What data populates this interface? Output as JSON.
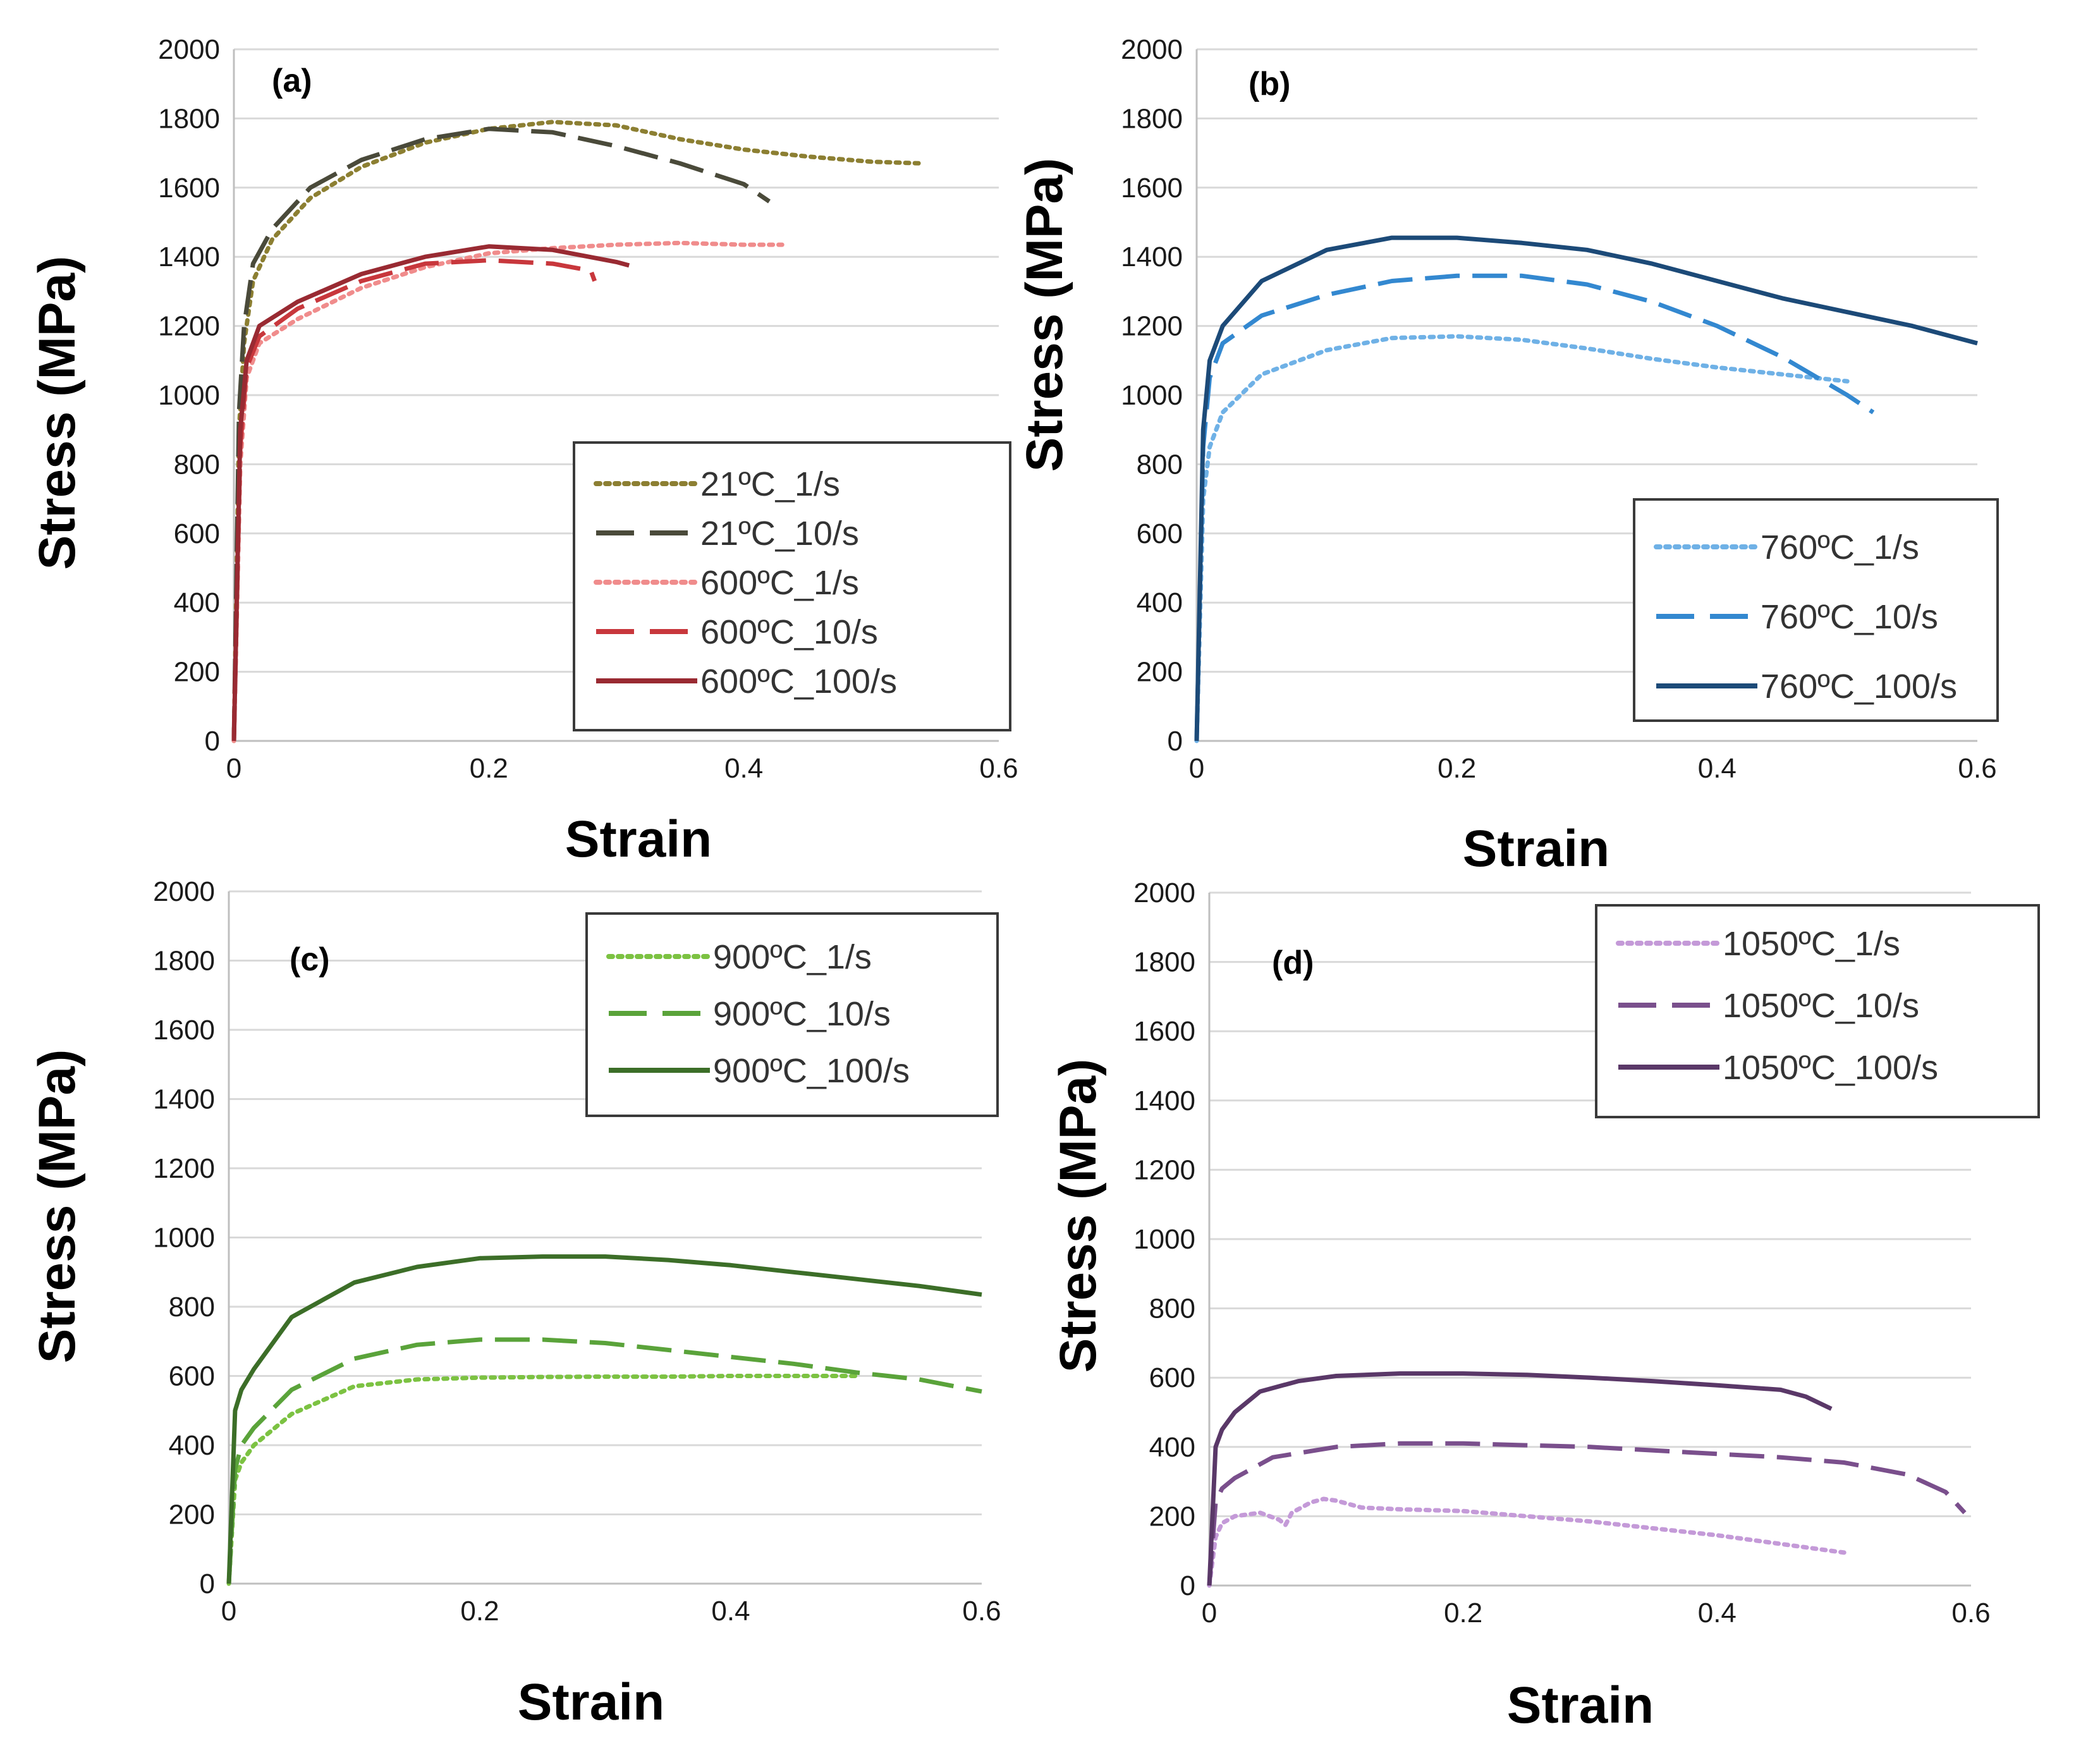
{
  "chart_data": [
    {
      "panel": "(a)",
      "type": "line",
      "xlabel": "Strain",
      "ylabel": "Stress (MPa)",
      "xlim": [
        0,
        0.6
      ],
      "ylim": [
        0,
        2000
      ],
      "xticks": [
        "0",
        "0.2",
        "0.4",
        "0.6"
      ],
      "yticks": [
        "0",
        "200",
        "400",
        "600",
        "800",
        "1000",
        "1200",
        "1400",
        "1600",
        "1800",
        "2000"
      ],
      "grid": "horizontal",
      "legend_position": "bottom-right",
      "series": [
        {
          "name": "21ºC_1/s",
          "color": "#8c7f32",
          "style": "dotted",
          "x": [
            0,
            0.004,
            0.008,
            0.015,
            0.03,
            0.06,
            0.1,
            0.15,
            0.2,
            0.25,
            0.3,
            0.35,
            0.4,
            0.45,
            0.5,
            0.54
          ],
          "y": [
            0,
            900,
            1150,
            1330,
            1450,
            1570,
            1660,
            1730,
            1770,
            1790,
            1780,
            1740,
            1710,
            1690,
            1675,
            1670
          ]
        },
        {
          "name": "21ºC_10/s",
          "color": "#4a4a3a",
          "style": "dashed",
          "x": [
            0,
            0.004,
            0.008,
            0.015,
            0.03,
            0.06,
            0.1,
            0.15,
            0.2,
            0.25,
            0.3,
            0.35,
            0.4,
            0.42
          ],
          "y": [
            0,
            950,
            1200,
            1380,
            1480,
            1600,
            1680,
            1740,
            1770,
            1760,
            1720,
            1670,
            1610,
            1560
          ]
        },
        {
          "name": "600ºC_1/s",
          "color": "#f08c8c",
          "style": "dotted",
          "x": [
            0,
            0.005,
            0.01,
            0.02,
            0.05,
            0.1,
            0.15,
            0.2,
            0.25,
            0.3,
            0.35,
            0.4,
            0.43
          ],
          "y": [
            0,
            800,
            1050,
            1150,
            1220,
            1310,
            1370,
            1410,
            1425,
            1435,
            1440,
            1435,
            1435
          ]
        },
        {
          "name": "600ºC_10/s",
          "color": "#c8373c",
          "style": "dashed",
          "x": [
            0,
            0.005,
            0.01,
            0.02,
            0.05,
            0.1,
            0.15,
            0.2,
            0.25,
            0.28,
            0.283
          ],
          "y": [
            0,
            850,
            1080,
            1170,
            1250,
            1330,
            1380,
            1390,
            1380,
            1360,
            1330
          ]
        },
        {
          "name": "600ºC_100/s",
          "color": "#992a32",
          "style": "solid",
          "x": [
            0,
            0.005,
            0.01,
            0.02,
            0.05,
            0.1,
            0.15,
            0.2,
            0.25,
            0.3,
            0.31
          ],
          "y": [
            0,
            900,
            1100,
            1200,
            1270,
            1350,
            1400,
            1430,
            1420,
            1385,
            1375
          ]
        }
      ]
    },
    {
      "panel": "(b)",
      "type": "line",
      "xlabel": "Strain",
      "ylabel": "Stress (MPa)",
      "xlim": [
        0,
        0.6
      ],
      "ylim": [
        0,
        2000
      ],
      "xticks": [
        "0",
        "0.2",
        "0.4",
        "0.6"
      ],
      "yticks": [
        "0",
        "200",
        "400",
        "600",
        "800",
        "1000",
        "1200",
        "1400",
        "1600",
        "1800",
        "2000"
      ],
      "grid": "horizontal",
      "legend_position": "bottom-right",
      "series": [
        {
          "name": "760ºC_1/s",
          "color": "#6fb1e6",
          "style": "dotted",
          "x": [
            0,
            0.005,
            0.01,
            0.02,
            0.05,
            0.1,
            0.15,
            0.2,
            0.25,
            0.3,
            0.35,
            0.4,
            0.45,
            0.5
          ],
          "y": [
            0,
            700,
            850,
            950,
            1060,
            1130,
            1165,
            1170,
            1160,
            1135,
            1105,
            1080,
            1060,
            1040
          ]
        },
        {
          "name": "760ºC_10/s",
          "color": "#3388d0",
          "style": "dashed",
          "x": [
            0,
            0.005,
            0.01,
            0.02,
            0.05,
            0.1,
            0.15,
            0.2,
            0.25,
            0.3,
            0.35,
            0.4,
            0.45,
            0.5,
            0.52
          ],
          "y": [
            0,
            850,
            1050,
            1150,
            1230,
            1290,
            1330,
            1345,
            1345,
            1320,
            1270,
            1200,
            1110,
            1000,
            950
          ]
        },
        {
          "name": "760ºC_100/s",
          "color": "#1c4a78",
          "style": "solid",
          "x": [
            0,
            0.005,
            0.01,
            0.02,
            0.05,
            0.1,
            0.15,
            0.2,
            0.25,
            0.3,
            0.35,
            0.4,
            0.45,
            0.5,
            0.55,
            0.6
          ],
          "y": [
            0,
            900,
            1100,
            1200,
            1330,
            1420,
            1455,
            1455,
            1440,
            1420,
            1380,
            1330,
            1280,
            1240,
            1200,
            1150
          ]
        }
      ]
    },
    {
      "panel": "(c)",
      "type": "line",
      "xlabel": "Strain",
      "ylabel": "Stress (MPa)",
      "xlim": [
        0,
        0.6
      ],
      "ylim": [
        0,
        2000
      ],
      "xticks": [
        "0",
        "0.2",
        "0.4",
        "0.6"
      ],
      "yticks": [
        "0",
        "200",
        "400",
        "600",
        "800",
        "1000",
        "1200",
        "1400",
        "1600",
        "1800",
        "2000"
      ],
      "grid": "horizontal",
      "legend_position": "top-right",
      "series": [
        {
          "name": "900ºC_1/s",
          "color": "#7cc242",
          "style": "dotted",
          "x": [
            0,
            0.005,
            0.01,
            0.02,
            0.05,
            0.1,
            0.15,
            0.2,
            0.25,
            0.3,
            0.35,
            0.4,
            0.45,
            0.5
          ],
          "y": [
            0,
            300,
            350,
            400,
            490,
            570,
            590,
            595,
            597,
            598,
            598,
            600,
            600,
            600
          ]
        },
        {
          "name": "900ºC_10/s",
          "color": "#5aa33a",
          "style": "dashed",
          "x": [
            0,
            0.005,
            0.01,
            0.02,
            0.05,
            0.1,
            0.15,
            0.2,
            0.25,
            0.3,
            0.35,
            0.4,
            0.45,
            0.5,
            0.55,
            0.6
          ],
          "y": [
            0,
            330,
            400,
            450,
            560,
            650,
            690,
            705,
            705,
            695,
            675,
            655,
            635,
            610,
            590,
            555
          ]
        },
        {
          "name": "900ºC_100/s",
          "color": "#3c6e28",
          "style": "solid",
          "x": [
            0,
            0.005,
            0.01,
            0.02,
            0.05,
            0.1,
            0.15,
            0.2,
            0.25,
            0.3,
            0.35,
            0.4,
            0.45,
            0.5,
            0.55,
            0.6
          ],
          "y": [
            0,
            500,
            560,
            620,
            770,
            870,
            915,
            940,
            945,
            945,
            935,
            920,
            900,
            880,
            860,
            835
          ]
        }
      ]
    },
    {
      "panel": "(d)",
      "type": "line",
      "xlabel": "Strain",
      "ylabel": "Stress (MPa)",
      "xlim": [
        0,
        0.6
      ],
      "ylim": [
        0,
        2000
      ],
      "xticks": [
        "0",
        "0.2",
        "0.4",
        "0.6"
      ],
      "yticks": [
        "0",
        "200",
        "400",
        "600",
        "800",
        "1000",
        "1200",
        "1400",
        "1600",
        "1800",
        "2000"
      ],
      "grid": "horizontal",
      "legend_position": "top-right",
      "series": [
        {
          "name": "1050ºC_1/s",
          "color": "#c49ad8",
          "style": "dotted",
          "x": [
            0,
            0.005,
            0.01,
            0.02,
            0.04,
            0.055,
            0.06,
            0.065,
            0.08,
            0.09,
            0.1,
            0.12,
            0.15,
            0.2,
            0.25,
            0.3,
            0.35,
            0.4,
            0.45,
            0.5
          ],
          "y": [
            0,
            140,
            180,
            200,
            210,
            190,
            175,
            210,
            240,
            250,
            245,
            225,
            220,
            215,
            200,
            185,
            165,
            145,
            120,
            95
          ]
        },
        {
          "name": "1050ºC_10/s",
          "color": "#7a4f8c",
          "style": "dashed",
          "x": [
            0,
            0.005,
            0.01,
            0.02,
            0.05,
            0.1,
            0.15,
            0.2,
            0.25,
            0.3,
            0.35,
            0.4,
            0.45,
            0.5,
            0.55,
            0.58,
            0.595
          ],
          "y": [
            0,
            240,
            280,
            310,
            370,
            400,
            410,
            410,
            405,
            400,
            390,
            380,
            370,
            355,
            320,
            270,
            210
          ]
        },
        {
          "name": "1050ºC_100/s",
          "color": "#5a3868",
          "style": "solid",
          "x": [
            0,
            0.005,
            0.01,
            0.02,
            0.04,
            0.07,
            0.1,
            0.15,
            0.2,
            0.25,
            0.3,
            0.35,
            0.4,
            0.45,
            0.47,
            0.49
          ],
          "y": [
            0,
            400,
            450,
            500,
            560,
            590,
            605,
            612,
            612,
            608,
            600,
            590,
            578,
            565,
            545,
            510
          ]
        }
      ]
    }
  ]
}
